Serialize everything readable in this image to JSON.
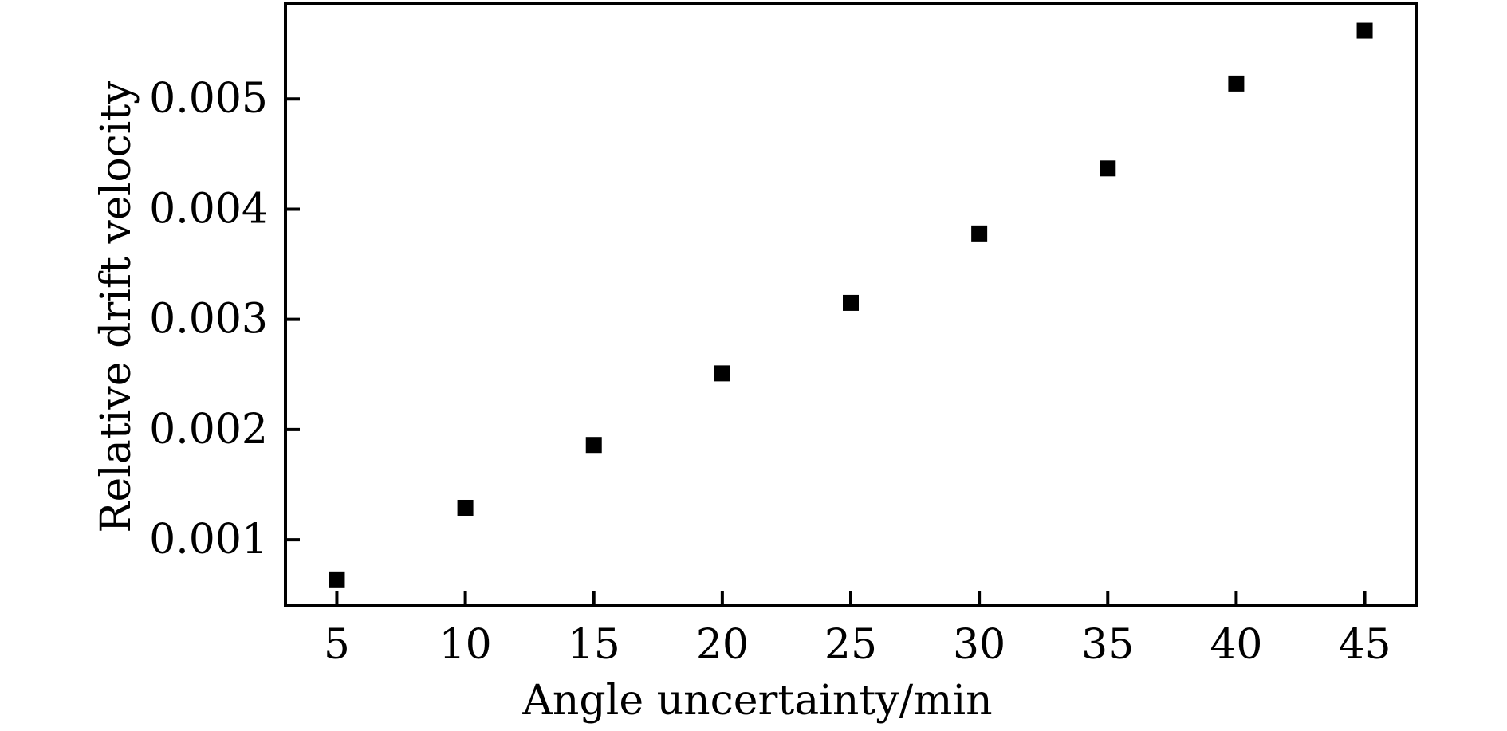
{
  "chart_data": {
    "type": "scatter",
    "title": "",
    "xlabel": "Angle uncertainty/min",
    "ylabel": "Relative drift velocity",
    "x": [
      5,
      10,
      15,
      20,
      25,
      30,
      35,
      40,
      45
    ],
    "series": [
      {
        "values": [
          0.00064,
          0.00129,
          0.00186,
          0.00251,
          0.00315,
          0.00378,
          0.00437,
          0.00514,
          0.00562
        ]
      }
    ],
    "xlim": [
      3,
      47
    ],
    "ylim": [
      0.0004,
      0.00587
    ],
    "xticks": [
      5,
      10,
      15,
      20,
      25,
      30,
      35,
      40,
      45
    ],
    "xtick_labels": [
      "5",
      "10",
      "15",
      "20",
      "25",
      "30",
      "35",
      "40",
      "45"
    ],
    "yticks": [
      0.001,
      0.002,
      0.003,
      0.004,
      0.005
    ],
    "ytick_labels": [
      "0.001",
      "0.002",
      "0.003",
      "0.004",
      "0.005"
    ],
    "grid": false,
    "legend": "none",
    "marker": "square",
    "marker_color": "#000000"
  }
}
